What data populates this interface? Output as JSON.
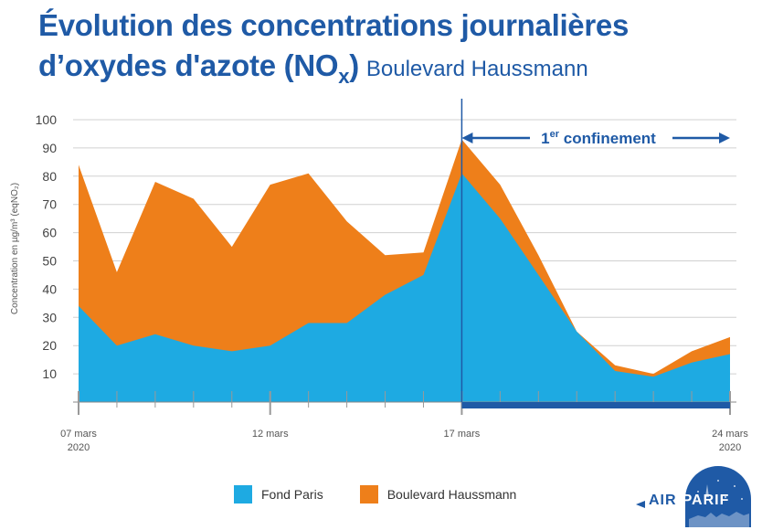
{
  "title": {
    "line1": "Évolution des concentrations journalières",
    "line2_main": "d’oxydes d'azote (NO",
    "line2_sub": "x",
    "line2_close": ")",
    "subtitle": "Boulevard Haussmann"
  },
  "annotation": {
    "label_prefix": "1",
    "label_sup": "er",
    "label_rest": " confinement"
  },
  "legend": {
    "fond": "Fond Paris",
    "haussmann": "Boulevard Haussmann"
  },
  "logo": {
    "text_left": "AIR",
    "text_right": "PARIF"
  },
  "colors": {
    "fond": "#1eaae2",
    "haussmann": "#ee7f1a",
    "title": "#1f5aa6",
    "confinement": "#1f5aa6"
  },
  "chart_data": {
    "type": "area",
    "stacked": false,
    "ylabel": "Concentration en µg/m³ (eqNO₂)",
    "ylim": [
      0,
      100
    ],
    "yticks": [
      10,
      20,
      30,
      40,
      50,
      60,
      70,
      80,
      90,
      100
    ],
    "x_dates": [
      "2020-03-07",
      "2020-03-08",
      "2020-03-09",
      "2020-03-10",
      "2020-03-11",
      "2020-03-12",
      "2020-03-13",
      "2020-03-14",
      "2020-03-15",
      "2020-03-16",
      "2020-03-17",
      "2020-03-18",
      "2020-03-19",
      "2020-03-20",
      "2020-03-21",
      "2020-03-22",
      "2020-03-23",
      "2020-03-24"
    ],
    "x_tick_labels": [
      {
        "date": "2020-03-07",
        "line1": "07 mars",
        "line2": "2020"
      },
      {
        "date": "2020-03-12",
        "line1": "12 mars",
        "line2": ""
      },
      {
        "date": "2020-03-17",
        "line1": "17 mars",
        "line2": ""
      },
      {
        "date": "2020-03-24",
        "line1": "24 mars",
        "line2": "2020"
      }
    ],
    "series": [
      {
        "name": "Boulevard Haussmann",
        "values": [
          84,
          46,
          78,
          72,
          55,
          77,
          81,
          64,
          52,
          53,
          93,
          77,
          52,
          25,
          13,
          10,
          18,
          23
        ]
      },
      {
        "name": "Fond Paris",
        "values": [
          34,
          20,
          24,
          20,
          18,
          20,
          28,
          28,
          38,
          45,
          81,
          65,
          45,
          25,
          11,
          9,
          14,
          17
        ]
      }
    ],
    "confinement_start": "2020-03-17",
    "confinement_end": "2020-03-24"
  }
}
